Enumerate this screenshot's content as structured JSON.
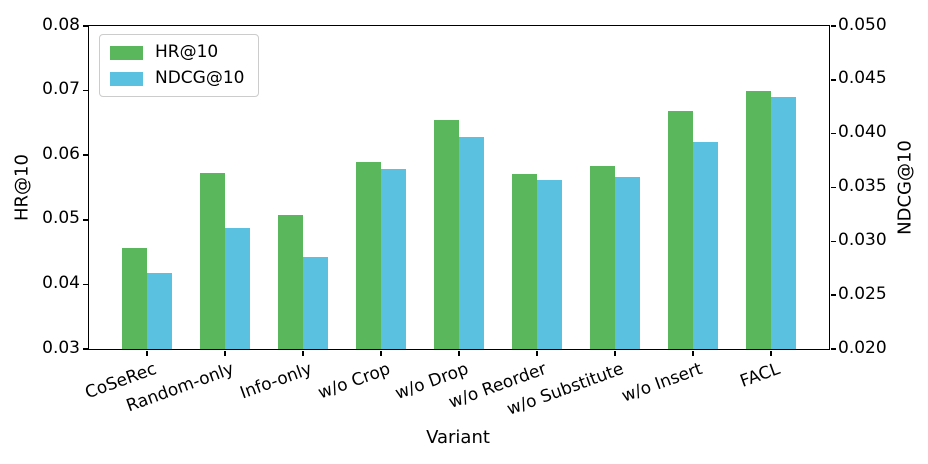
{
  "chart_data": {
    "type": "bar",
    "title": "",
    "xlabel": "Variant",
    "left_ylabel": "HR@10",
    "right_ylabel": "NDCG@10",
    "left_ylim": [
      0.03,
      0.08
    ],
    "right_ylim": [
      0.02,
      0.05
    ],
    "left_yticks": [
      "0.03",
      "0.04",
      "0.05",
      "0.06",
      "0.07",
      "0.08"
    ],
    "left_ytick_values": [
      0.03,
      0.04,
      0.05,
      0.06,
      0.07,
      0.08
    ],
    "right_yticks": [
      "0.020",
      "0.025",
      "0.030",
      "0.035",
      "0.040",
      "0.045",
      "0.050"
    ],
    "right_ytick_values": [
      0.02,
      0.025,
      0.03,
      0.035,
      0.04,
      0.045,
      0.05
    ],
    "categories": [
      "CoSeRec",
      "Random-only",
      "Info-only",
      "w/o Crop",
      "w/o Drop",
      "w/o Reorder",
      "w/o Substitute",
      "w/o Insert",
      "FACL"
    ],
    "series": [
      {
        "name": "HR@10",
        "axis": "left",
        "color": "#5bb75c",
        "values": [
          0.0456,
          0.0572,
          0.0507,
          0.059,
          0.0655,
          0.0571,
          0.0583,
          0.0668,
          0.07
        ]
      },
      {
        "name": "NDCG@10",
        "axis": "right",
        "color": "#5ac2e0",
        "values": [
          0.0271,
          0.0312,
          0.0285,
          0.0367,
          0.0397,
          0.0357,
          0.036,
          0.0392,
          0.0434
        ]
      }
    ],
    "legend_position": "upper left",
    "grid": false
  }
}
